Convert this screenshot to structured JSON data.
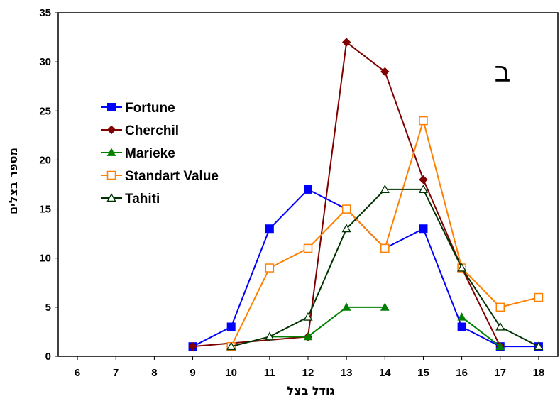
{
  "chart_data": {
    "type": "line",
    "title": "",
    "panel_label": "ב",
    "xlabel": "גודל בצל",
    "ylabel": "מספר בצלים",
    "x": [
      6,
      7,
      8,
      9,
      10,
      11,
      12,
      13,
      14,
      15,
      16,
      17,
      18
    ],
    "xlim": [
      6,
      18
    ],
    "ylim": [
      0,
      35
    ],
    "y_ticks": [
      0,
      5,
      10,
      15,
      20,
      25,
      30,
      35
    ],
    "grid": false,
    "legend_position": "left",
    "series": [
      {
        "name": "Fortune",
        "color": "#0000ff",
        "marker": "filled-square",
        "points": [
          [
            9,
            1
          ],
          [
            10,
            3
          ],
          [
            11,
            13
          ],
          [
            12,
            17
          ],
          [
            13,
            15
          ],
          [
            14,
            11
          ],
          [
            15,
            13
          ],
          [
            16,
            3
          ],
          [
            17,
            1
          ],
          [
            18,
            1
          ]
        ]
      },
      {
        "name": "Cherchil",
        "color": "#800000",
        "marker": "filled-diamond",
        "points": [
          [
            9,
            1
          ],
          [
            12,
            2
          ],
          [
            13,
            32
          ],
          [
            14,
            29
          ],
          [
            15,
            18
          ],
          [
            16,
            9
          ],
          [
            17,
            1
          ]
        ]
      },
      {
        "name": "Marieke",
        "color": "#008000",
        "marker": "filled-triangle",
        "points": [
          [
            11,
            2
          ],
          [
            12,
            2
          ],
          [
            13,
            5
          ],
          [
            14,
            5
          ],
          [
            null,
            null
          ],
          [
            16,
            4
          ],
          [
            17,
            1
          ]
        ]
      },
      {
        "name": "Standart Value",
        "color": "#ff8000",
        "marker": "open-square",
        "points": [
          [
            10,
            1
          ],
          [
            11,
            9
          ],
          [
            12,
            11
          ],
          [
            13,
            15
          ],
          [
            14,
            11
          ],
          [
            15,
            24
          ],
          [
            16,
            9
          ],
          [
            17,
            5
          ],
          [
            18,
            6
          ]
        ]
      },
      {
        "name": "Tahiti",
        "color": "#003300",
        "marker": "open-triangle",
        "points": [
          [
            10,
            1
          ],
          [
            11,
            2
          ],
          [
            12,
            4
          ],
          [
            13,
            13
          ],
          [
            14,
            17
          ],
          [
            15,
            17
          ],
          [
            16,
            9
          ],
          [
            17,
            3
          ],
          [
            18,
            1
          ]
        ]
      }
    ]
  }
}
